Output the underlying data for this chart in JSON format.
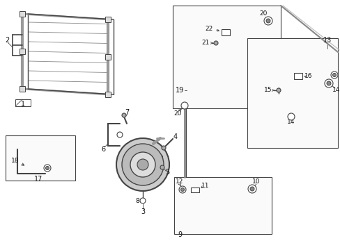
{
  "bg_color": "#ffffff",
  "lc": "#444444",
  "lc2": "#888888",
  "fig_width": 4.89,
  "fig_height": 3.6,
  "dpi": 100,
  "xlim": [
    0,
    489
  ],
  "ylim": [
    0,
    360
  ]
}
